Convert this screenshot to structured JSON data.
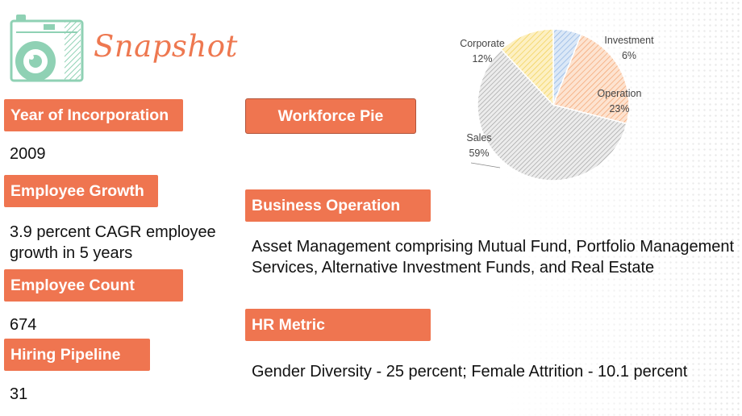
{
  "page": {
    "title": "Snapshot",
    "logo_icon": "camera-icon",
    "accent_color": "#ef7550"
  },
  "left_column": [
    {
      "label": "Year of Incorporation",
      "value": "2009"
    },
    {
      "label": "Employee Growth",
      "value": "3.9 percent CAGR employee growth in 5 years"
    },
    {
      "label": "Employee Count",
      "value": "674"
    },
    {
      "label": "Hiring Pipeline",
      "value": "31"
    }
  ],
  "workforce_button": {
    "label": "Workforce Pie"
  },
  "business_operation": {
    "label": "Business Operation",
    "value": "Asset Management comprising Mutual Fund, Portfolio Management Services, Alternative Investment Funds, and Real Estate"
  },
  "hr_metric": {
    "label": "HR Metric",
    "value": "Gender Diversity - 25 percent; Female Attrition - 10.1 percent"
  },
  "chart_data": {
    "type": "pie",
    "title": "",
    "slices": [
      {
        "name": "Investment",
        "value": 6,
        "label": "6%",
        "color": "#a8c6ea"
      },
      {
        "name": "Operation",
        "value": 23,
        "label": "23%",
        "color": "#f6b48a"
      },
      {
        "name": "Sales",
        "value": 59,
        "label": "59%",
        "color": "#b9b9b9"
      },
      {
        "name": "Corporate",
        "value": 12,
        "label": "12%",
        "color": "#f7d768"
      }
    ]
  }
}
